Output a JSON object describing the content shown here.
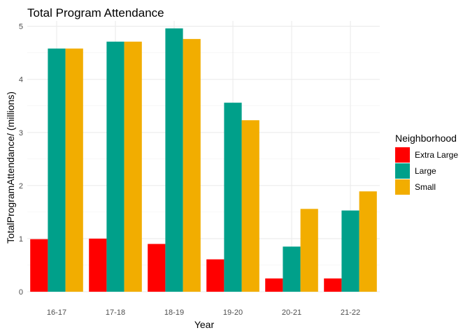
{
  "chart_data": {
    "type": "bar",
    "title": "Total Program Attendance",
    "xlabel": "Year",
    "ylabel": "TotalProgramAttendance/ (millions)",
    "categories": [
      "16-17",
      "17-18",
      "18-19",
      "19-20",
      "20-21",
      "21-22"
    ],
    "ylim": [
      0,
      5.1
    ],
    "yticks": [
      0,
      1,
      2,
      3,
      4,
      5
    ],
    "grid": true,
    "legend_title": "Neighborhood",
    "legend_position": "right",
    "series": [
      {
        "name": "Extra Large",
        "color": "#ff0000",
        "values": [
          0.99,
          1.0,
          0.9,
          0.61,
          0.25,
          0.25
        ]
      },
      {
        "name": "Large",
        "color": "#00a08a",
        "values": [
          4.58,
          4.71,
          4.96,
          3.56,
          0.85,
          1.53
        ]
      },
      {
        "name": "Small",
        "color": "#f2ad00",
        "values": [
          4.58,
          4.71,
          4.76,
          3.23,
          1.56,
          1.89
        ]
      }
    ]
  }
}
